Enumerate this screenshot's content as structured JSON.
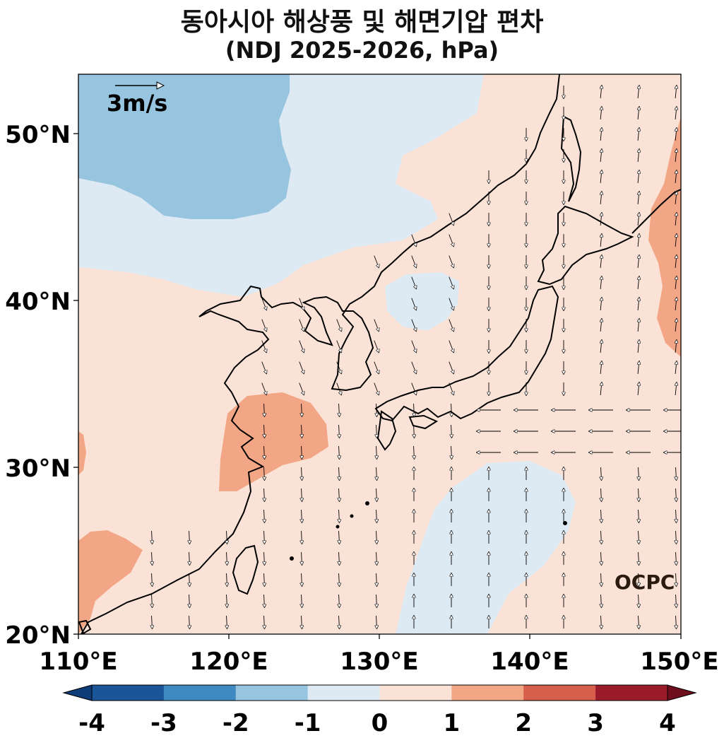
{
  "title": {
    "line1": "동아시아 해상풍 및 해면기압 편차",
    "line2": "(NDJ 2025-2026, hPa)"
  },
  "map": {
    "lon_ticks": [
      "110°E",
      "120°E",
      "130°E",
      "140°E",
      "150°E"
    ],
    "lat_ticks": [
      "20°N",
      "30°N",
      "40°N",
      "50°N"
    ],
    "lon_range": [
      110,
      150
    ],
    "lat_range": [
      20,
      53.5
    ],
    "reference_vector_label": "3m/s",
    "watermark": "OCPC"
  },
  "colorbar": {
    "tick_labels": [
      "-4",
      "-3",
      "-2",
      "-1",
      "0",
      "1",
      "2",
      "3",
      "4"
    ],
    "colors": [
      "#1a5597",
      "#3f8ac2",
      "#97c4de",
      "#deeaf3",
      "#fae3d6",
      "#f3a685",
      "#d65e4c",
      "#9c1b2b"
    ],
    "extend_low": "#0f3d78",
    "extend_high": "#6e0d1c"
  },
  "palette": {
    "ocean_base": "#fae3d6",
    "neg1": "#deeaf3",
    "neg2": "#97c4de",
    "pos1": "#f3a685",
    "coast": "#000000"
  }
}
